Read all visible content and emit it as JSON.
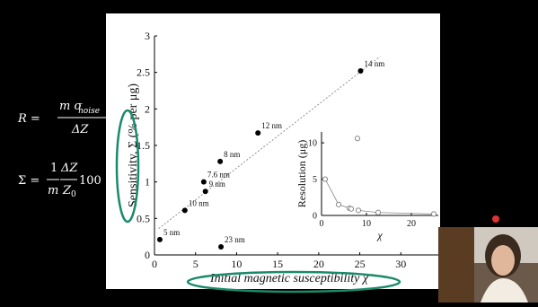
{
  "equations": {
    "resolution": {
      "lhs": "R =",
      "numerator": "m σ",
      "numerator_sub": "noise",
      "denominator": "ΔZ"
    },
    "sensitivity": {
      "lhs": "Σ =",
      "frac1_num": "1",
      "frac1_den": "m",
      "frac2_num": "ΔZ",
      "frac2_den": "Z",
      "frac2_den_sub": "0",
      "tail": "100"
    }
  },
  "chart_data": [
    {
      "type": "scatter",
      "x_label": "Initial magnetic susceptibility χ",
      "y_label": "Sensitivity, Σ (% per μg)",
      "x": [
        0.65,
        8.1,
        3.7,
        6.2,
        6.0,
        8.0,
        12.6,
        25.1
      ],
      "values": [
        0.21,
        0.11,
        0.61,
        0.87,
        1.0,
        1.28,
        1.67,
        2.52
      ],
      "labels": [
        "5 nm",
        "23 nm",
        "10 nm",
        "9 nm",
        "7.6 nm",
        "8 nm",
        "12 nm",
        "14 nm"
      ],
      "color": "#000000",
      "trend_x": [
        0.5,
        27.5
      ],
      "trend_y": [
        0.36,
        2.72
      ],
      "xlim": [
        0,
        35
      ],
      "ylim": [
        0,
        3
      ],
      "xticks": [
        0,
        5,
        10,
        15,
        20,
        25,
        30
      ],
      "yticks": [
        0,
        0.5,
        1,
        1.5,
        2,
        2.5,
        3
      ]
    },
    {
      "type": "scatter",
      "x_label": "χ",
      "y_label": "Resolution (μg)",
      "x": [
        0.8,
        3.8,
        6.2,
        6.6,
        8.0,
        8.2,
        12.6,
        25
      ],
      "values": [
        5.0,
        1.5,
        1.0,
        0.9,
        10.6,
        0.7,
        0.4,
        0.2
      ],
      "line_values": [
        5.0,
        1.5,
        1.0,
        0.9,
        null,
        0.7,
        0.4,
        0.2
      ],
      "color": "#888888",
      "xlim": [
        0,
        26
      ],
      "ylim": [
        0,
        11.5
      ],
      "xticks": [
        0,
        10,
        20
      ],
      "yticks": [
        0,
        5,
        10
      ]
    }
  ]
}
